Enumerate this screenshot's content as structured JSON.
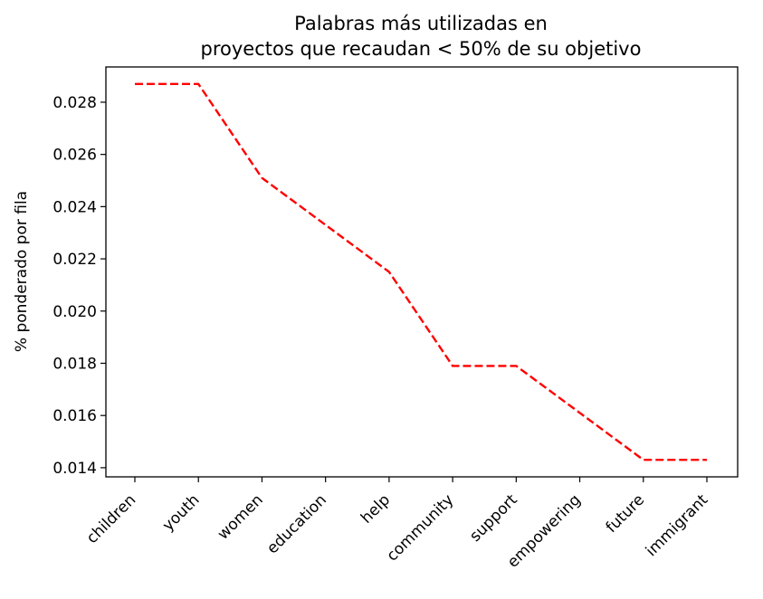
{
  "chart_data": {
    "type": "line",
    "title_lines": [
      "Palabras más utilizadas en",
      "proyectos que recaudan < 50% de su objetivo"
    ],
    "xlabel": "",
    "ylabel": "% ponderado por fila",
    "categories": [
      "children",
      "youth",
      "women",
      "education",
      "help",
      "community",
      "support",
      "empowering",
      "future",
      "immigrant"
    ],
    "values": [
      0.0287,
      0.0287,
      0.0251,
      0.0233,
      0.0215,
      0.0179,
      0.0179,
      0.0161,
      0.0143,
      0.0143
    ],
    "ylim": [
      0.01365,
      0.02935
    ],
    "yticks": [
      0.014,
      0.016,
      0.018,
      0.02,
      0.022,
      0.024,
      0.026,
      0.028
    ],
    "ytick_labels": [
      "0.014",
      "0.016",
      "0.018",
      "0.020",
      "0.022",
      "0.024",
      "0.026",
      "0.028"
    ],
    "line_color": "#ff0000",
    "line_style": "dashed",
    "grid": false,
    "legend": "none"
  }
}
